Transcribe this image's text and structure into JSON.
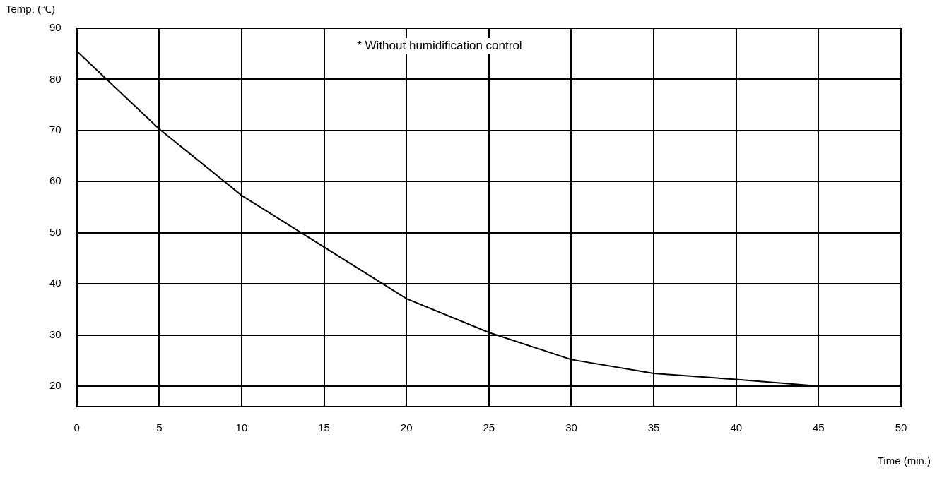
{
  "chart_data": {
    "type": "line",
    "xlabel": "Time (min.)",
    "ylabel": "Temp. (℃)",
    "annotations": [
      "* Without humidification control"
    ],
    "series": [
      {
        "color": "#000000",
        "x": [
          0,
          5,
          10,
          20,
          25,
          30,
          35,
          40,
          45
        ],
        "values": [
          85.5,
          70.3,
          57.3,
          37.1,
          30.5,
          25.2,
          22.5,
          21.3,
          20
        ]
      }
    ],
    "xlim": [
      0,
      50
    ],
    "xticks": [
      0,
      5,
      10,
      15,
      20,
      25,
      30,
      35,
      40,
      45,
      50
    ],
    "ylim": [
      16,
      90
    ],
    "yticks": [
      {
        "value": 16,
        "label": null
      },
      20,
      30,
      40,
      50,
      60,
      70,
      80,
      90
    ],
    "grid": true,
    "legend": false,
    "marker": "none",
    "line_style": "solid"
  }
}
